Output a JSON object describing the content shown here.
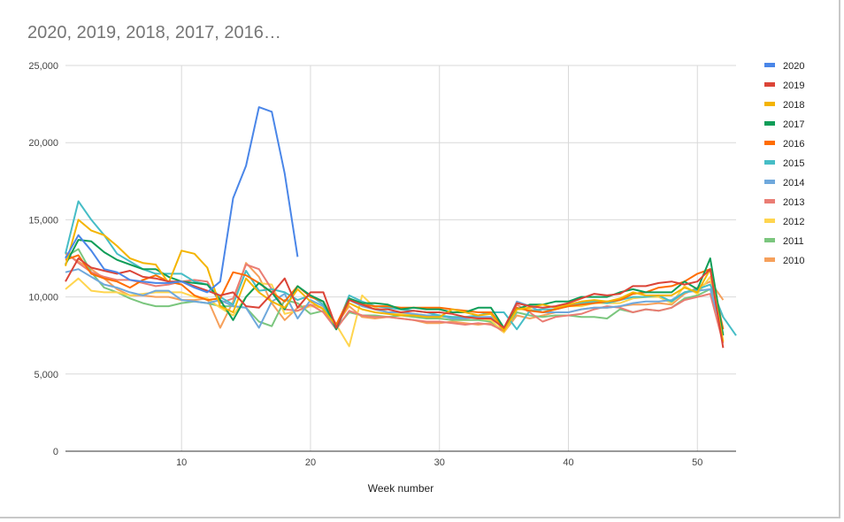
{
  "chart_data": {
    "type": "line",
    "title": "2020, 2019, 2018, 2017, 2016…",
    "xlabel": "Week number",
    "ylabel": "",
    "xlim": [
      1,
      53
    ],
    "ylim": [
      0,
      25000
    ],
    "x_ticks": [
      "10",
      "20",
      "30",
      "40",
      "50"
    ],
    "y_ticks": [
      "0",
      "5,000",
      "10,000",
      "15,000",
      "20,000",
      "25,000"
    ],
    "grid": true,
    "legend_position": "right",
    "series": [
      {
        "name": "2020",
        "color": "#4a86e8",
        "x": [
          1,
          2,
          3,
          4,
          5,
          6,
          7,
          8,
          9,
          10,
          11,
          12,
          13,
          14,
          15,
          16,
          17,
          18,
          19
        ],
        "values": [
          12500,
          14000,
          13000,
          11800,
          11600,
          11100,
          11000,
          10900,
          10900,
          11000,
          10600,
          10300,
          11000,
          16400,
          18500,
          22300,
          22000,
          18000,
          12600
        ]
      },
      {
        "name": "2019",
        "color": "#db4437",
        "x": [
          1,
          2,
          3,
          4,
          5,
          6,
          7,
          8,
          9,
          10,
          11,
          12,
          13,
          14,
          15,
          16,
          17,
          18,
          19,
          20,
          21,
          22,
          23,
          24,
          25,
          26,
          27,
          28,
          29,
          30,
          31,
          32,
          33,
          34,
          35,
          36,
          37,
          38,
          39,
          40,
          41,
          42,
          43,
          44,
          45,
          46,
          47,
          48,
          49,
          50,
          51,
          52
        ],
        "values": [
          11000,
          12500,
          11900,
          11700,
          11500,
          11700,
          11300,
          11200,
          11000,
          11000,
          10700,
          10400,
          10100,
          10300,
          9400,
          9300,
          10200,
          11200,
          9300,
          10300,
          10300,
          8000,
          9800,
          9500,
          9200,
          9200,
          9000,
          9100,
          9000,
          9000,
          8900,
          8700,
          8600,
          8600,
          8000,
          9600,
          9400,
          9300,
          9400,
          9600,
          9900,
          10200,
          10100,
          10200,
          10700,
          10700,
          10900,
          11000,
          10800,
          11000,
          11800,
          6700
        ]
      },
      {
        "name": "2018",
        "color": "#f4b400",
        "x": [
          1,
          2,
          3,
          4,
          5,
          6,
          7,
          8,
          9,
          10,
          11,
          12,
          13,
          14,
          15,
          16,
          17,
          18,
          19,
          20,
          21,
          22,
          23,
          24,
          25,
          26,
          27,
          28,
          29,
          30,
          31,
          32,
          33,
          34,
          35,
          36,
          37,
          38,
          39,
          40,
          41,
          42,
          43,
          44,
          45,
          46,
          47,
          48,
          49,
          50,
          51,
          52
        ],
        "values": [
          12000,
          15000,
          14300,
          14000,
          13300,
          12500,
          12200,
          12100,
          10900,
          13000,
          12800,
          11900,
          9400,
          9000,
          11200,
          10300,
          9700,
          9300,
          10500,
          9700,
          9200,
          8100,
          9600,
          9200,
          9000,
          8900,
          8800,
          8800,
          8700,
          8700,
          9200,
          9000,
          8800,
          8900,
          7800,
          9200,
          9300,
          9500,
          9300,
          9500,
          9700,
          9800,
          9700,
          9900,
          10300,
          10100,
          10100,
          10100,
          10600,
          10300,
          11800,
          7100
        ]
      },
      {
        "name": "2017",
        "color": "#0f9d58",
        "x": [
          1,
          2,
          3,
          4,
          5,
          6,
          7,
          8,
          9,
          10,
          11,
          12,
          13,
          14,
          15,
          16,
          17,
          18,
          19,
          20,
          21,
          22,
          23,
          24,
          25,
          26,
          27,
          28,
          29,
          30,
          31,
          32,
          33,
          34,
          35,
          36,
          37,
          38,
          39,
          40,
          41,
          42,
          43,
          44,
          45,
          46,
          47,
          48,
          49,
          50,
          51,
          52
        ],
        "values": [
          12100,
          13700,
          13600,
          12900,
          12400,
          12100,
          11800,
          11800,
          11300,
          11000,
          10900,
          10800,
          9800,
          8500,
          10000,
          10900,
          10300,
          9200,
          10700,
          10100,
          9700,
          7900,
          9900,
          9600,
          9600,
          9500,
          9200,
          9300,
          9200,
          9200,
          9000,
          9000,
          9300,
          9300,
          8000,
          9200,
          9500,
          9500,
          9700,
          9700,
          10000,
          10000,
          10000,
          10300,
          10500,
          10300,
          10300,
          10300,
          11000,
          10500,
          12500,
          7500
        ]
      },
      {
        "name": "2016",
        "color": "#ff6d00",
        "x": [
          1,
          2,
          3,
          4,
          5,
          6,
          7,
          8,
          9,
          10,
          11,
          12,
          13,
          14,
          15,
          16,
          17,
          18,
          19,
          20,
          21,
          22,
          23,
          24,
          25,
          26,
          27,
          28,
          29,
          30,
          31,
          32,
          33,
          34,
          35,
          36,
          37,
          38,
          39,
          40,
          41,
          42,
          43,
          44,
          45,
          46,
          47,
          48,
          49,
          50,
          51,
          52
        ],
        "values": [
          12400,
          12700,
          11500,
          11200,
          11000,
          10600,
          11100,
          11400,
          11000,
          10800,
          10100,
          9800,
          9900,
          11600,
          11400,
          10900,
          10300,
          9700,
          10700,
          10000,
          9700,
          8200,
          9900,
          9500,
          9400,
          9400,
          9300,
          9300,
          9300,
          9300,
          9200,
          9100,
          9000,
          9000,
          7900,
          9300,
          9100,
          9000,
          9200,
          9400,
          9500,
          9600,
          9700,
          9800,
          10200,
          10300,
          10600,
          10700,
          11000,
          11500,
          11800,
          7900
        ]
      },
      {
        "name": "2015",
        "color": "#46bdc6",
        "x": [
          1,
          2,
          3,
          4,
          5,
          6,
          7,
          8,
          9,
          10,
          11,
          12,
          13,
          14,
          15,
          16,
          17,
          18,
          19,
          20,
          21,
          22,
          23,
          24,
          25,
          26,
          27,
          28,
          29,
          30,
          31,
          32,
          33,
          34,
          35,
          36,
          37,
          38,
          39,
          40,
          41,
          42,
          43,
          44,
          45,
          46,
          47,
          48,
          49,
          50,
          51,
          52,
          53
        ],
        "values": [
          12800,
          16200,
          15000,
          14000,
          12800,
          12300,
          11800,
          11500,
          11500,
          11500,
          11000,
          10800,
          10000,
          9500,
          11700,
          10400,
          10500,
          10300,
          9800,
          10100,
          9500,
          8000,
          10100,
          9700,
          9400,
          9300,
          9200,
          9100,
          9000,
          8800,
          8700,
          8700,
          8800,
          9000,
          9000,
          7900,
          9100,
          9200,
          9200,
          9400,
          9600,
          9700,
          9600,
          9800,
          10000,
          10000,
          10100,
          9700,
          10300,
          10500,
          10800,
          8700,
          7500
        ]
      },
      {
        "name": "2014",
        "color": "#6fa8dc",
        "x": [
          1,
          2,
          3,
          4,
          5,
          6,
          7,
          8,
          9,
          10,
          11,
          12,
          13,
          14,
          15,
          16,
          17,
          18,
          19,
          20,
          21,
          22,
          23,
          24,
          25,
          26,
          27,
          28,
          29,
          30,
          31,
          32,
          33,
          34,
          35,
          36,
          37,
          38,
          39,
          40,
          41,
          42,
          43,
          44,
          45,
          46,
          47,
          48,
          49,
          50,
          51,
          52
        ],
        "values": [
          11600,
          11800,
          11300,
          10800,
          10600,
          10300,
          10100,
          10400,
          10400,
          9800,
          9700,
          9600,
          9800,
          9400,
          9300,
          8000,
          9700,
          10200,
          8600,
          9800,
          9400,
          7900,
          9800,
          9400,
          9200,
          9000,
          9000,
          8900,
          8800,
          8800,
          8600,
          8600,
          8700,
          8700,
          7900,
          9700,
          9400,
          9000,
          9000,
          9000,
          9200,
          9300,
          9300,
          9400,
          9600,
          9700,
          9700,
          9800,
          10300,
          10400,
          10500,
          7600
        ]
      },
      {
        "name": "2013",
        "color": "#ea7d74",
        "x": [
          1,
          2,
          3,
          4,
          5,
          6,
          7,
          8,
          9,
          10,
          11,
          12,
          13,
          14,
          15,
          16,
          17,
          18,
          19,
          20,
          21,
          22,
          23,
          24,
          25,
          26,
          27,
          28,
          29,
          30,
          31,
          32,
          33,
          34,
          35,
          36,
          37,
          38,
          39,
          40,
          41,
          42,
          43,
          44,
          45,
          46,
          47,
          48,
          49,
          50,
          51,
          52
        ],
        "values": [
          12900,
          12200,
          11600,
          11300,
          11100,
          11100,
          10900,
          10700,
          10800,
          11000,
          11100,
          11000,
          9600,
          9900,
          12100,
          11800,
          10500,
          9200,
          9100,
          9500,
          9000,
          7900,
          9100,
          8800,
          8700,
          8700,
          8600,
          8500,
          8400,
          8400,
          8300,
          8200,
          8300,
          8200,
          7800,
          9500,
          9000,
          8400,
          8700,
          8800,
          8900,
          9200,
          9400,
          9300,
          9000,
          9200,
          9100,
          9300,
          9800,
          10000,
          10200,
          7000
        ]
      },
      {
        "name": "2012",
        "color": "#ffd54f",
        "x": [
          1,
          2,
          3,
          4,
          5,
          6,
          7,
          8,
          9,
          10,
          11,
          12,
          13,
          14,
          15,
          16,
          17,
          18,
          19,
          20,
          21,
          22,
          23,
          24,
          25,
          26,
          27,
          28,
          29,
          30,
          31,
          32,
          33,
          34,
          35,
          36,
          37,
          38,
          39,
          40,
          41,
          42,
          43,
          44,
          45,
          46,
          47,
          48,
          49,
          50,
          51,
          52
        ],
        "values": [
          10500,
          11200,
          10400,
          10300,
          10300,
          10100,
          10200,
          10300,
          10300,
          10300,
          10000,
          9900,
          9300,
          8800,
          10000,
          10900,
          10800,
          8900,
          9100,
          9400,
          9300,
          8200,
          6800,
          10100,
          9300,
          9000,
          8900,
          8900,
          8800,
          8700,
          8700,
          8700,
          8600,
          8500,
          7700,
          9200,
          9200,
          9000,
          9200,
          9400,
          9400,
          9600,
          9600,
          9600,
          9900,
          10000,
          10000,
          9600,
          10700,
          10200,
          11300,
          7600
        ]
      },
      {
        "name": "2011",
        "color": "#7bc67e",
        "x": [
          1,
          2,
          3,
          4,
          5,
          6,
          7,
          8,
          9,
          10,
          11,
          12,
          13,
          14,
          15,
          16,
          17,
          18,
          19,
          20,
          21,
          22,
          23,
          24,
          25,
          26,
          27,
          28,
          29,
          30,
          31,
          32,
          33,
          34,
          35,
          36,
          37,
          38,
          39,
          40,
          41,
          42,
          43,
          44,
          45,
          46,
          47,
          48,
          49,
          50,
          51,
          52
        ],
        "values": [
          12600,
          13100,
          11600,
          10600,
          10300,
          9900,
          9600,
          9400,
          9400,
          9600,
          9700,
          9600,
          9400,
          9400,
          9300,
          8400,
          8100,
          9800,
          9600,
          8900,
          9100,
          8000,
          9000,
          8800,
          8800,
          8700,
          8800,
          8700,
          8600,
          8600,
          8500,
          8500,
          8500,
          8400,
          7800,
          9000,
          8800,
          8700,
          8800,
          8800,
          8700,
          8700,
          8600,
          9200,
          9000,
          9200,
          9100,
          9300,
          9900,
          10100,
          10500,
          8700
        ]
      },
      {
        "name": "2010",
        "color": "#f6a05b",
        "x": [
          1,
          2,
          3,
          4,
          5,
          6,
          7,
          8,
          9,
          10,
          11,
          12,
          13,
          14,
          15,
          16,
          17,
          18,
          19,
          20,
          21,
          22,
          23,
          24,
          25,
          26,
          27,
          28,
          29,
          30,
          31,
          32,
          33,
          34,
          35,
          36,
          37,
          38,
          39,
          40,
          41,
          42,
          43,
          44,
          45,
          46,
          47,
          48,
          49,
          50,
          51,
          52
        ],
        "values": [
          12800,
          12300,
          11800,
          11200,
          10500,
          10100,
          10100,
          10000,
          10000,
          9800,
          9800,
          9900,
          8000,
          9700,
          12200,
          11300,
          9600,
          8500,
          9300,
          9500,
          9300,
          8200,
          9400,
          8700,
          8600,
          8700,
          8600,
          8500,
          8300,
          8300,
          8400,
          8300,
          8200,
          8300,
          7700,
          8800,
          8600,
          8800,
          9000,
          9000,
          9200,
          9300,
          9300,
          9400,
          9500,
          9500,
          9600,
          9500,
          10200,
          10600,
          11000,
          9800
        ]
      }
    ]
  }
}
